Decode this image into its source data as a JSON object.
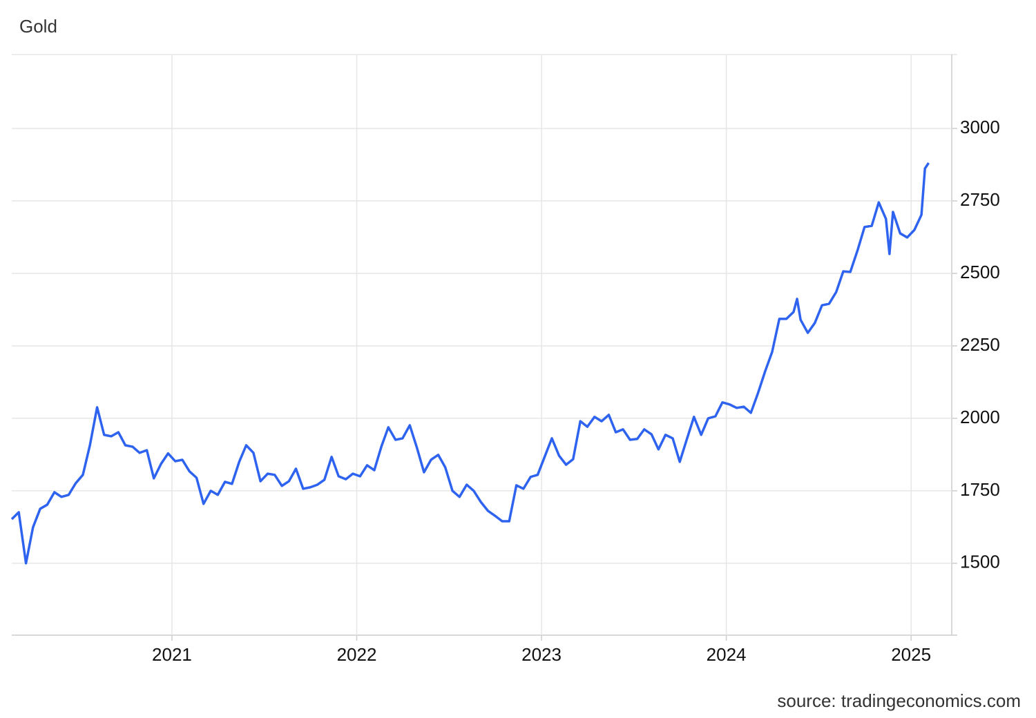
{
  "chart_data": {
    "type": "line",
    "title": "Gold",
    "source": "source: tradingeconomics.com",
    "color": "#2e63f0",
    "grid": true,
    "x": [
      2020.133,
      2020.171,
      2020.21,
      2020.248,
      2020.287,
      2020.325,
      2020.364,
      2020.402,
      2020.441,
      2020.479,
      2020.518,
      2020.556,
      2020.595,
      2020.633,
      2020.671,
      2020.71,
      2020.748,
      2020.787,
      2020.825,
      2020.864,
      2020.902,
      2020.941,
      2020.979,
      2021.018,
      2021.056,
      2021.095,
      2021.133,
      2021.171,
      2021.21,
      2021.248,
      2021.287,
      2021.325,
      2021.364,
      2021.402,
      2021.441,
      2021.479,
      2021.518,
      2021.556,
      2021.595,
      2021.633,
      2021.671,
      2021.71,
      2021.748,
      2021.787,
      2021.825,
      2021.864,
      2021.902,
      2021.941,
      2021.979,
      2022.018,
      2022.056,
      2022.095,
      2022.133,
      2022.171,
      2022.21,
      2022.248,
      2022.287,
      2022.325,
      2022.364,
      2022.402,
      2022.441,
      2022.479,
      2022.518,
      2022.556,
      2022.595,
      2022.633,
      2022.671,
      2022.71,
      2022.748,
      2022.787,
      2022.825,
      2022.864,
      2022.902,
      2022.941,
      2022.979,
      2023.018,
      2023.056,
      2023.095,
      2023.133,
      2023.171,
      2023.21,
      2023.248,
      2023.287,
      2023.325,
      2023.364,
      2023.402,
      2023.441,
      2023.479,
      2023.518,
      2023.556,
      2023.595,
      2023.633,
      2023.671,
      2023.71,
      2023.748,
      2023.787,
      2023.825,
      2023.864,
      2023.902,
      2023.941,
      2023.979,
      2024.018,
      2024.056,
      2024.095,
      2024.133,
      2024.171,
      2024.21,
      2024.248,
      2024.287,
      2024.325,
      2024.364,
      2024.383,
      2024.402,
      2024.441,
      2024.479,
      2024.518,
      2024.556,
      2024.595,
      2024.633,
      2024.671,
      2024.71,
      2024.748,
      2024.787,
      2024.825,
      2024.864,
      2024.883,
      2024.902,
      2024.941,
      2024.979,
      2025.018,
      2025.056,
      2025.075,
      2025.095
    ],
    "values": [
      1652,
      1676,
      1500,
      1624,
      1688,
      1702,
      1745,
      1729,
      1736,
      1776,
      1805,
      1907,
      2038,
      1943,
      1938,
      1952,
      1907,
      1902,
      1881,
      1890,
      1793,
      1843,
      1879,
      1852,
      1857,
      1817,
      1795,
      1705,
      1750,
      1736,
      1781,
      1774,
      1850,
      1907,
      1881,
      1783,
      1809,
      1805,
      1767,
      1783,
      1826,
      1757,
      1762,
      1771,
      1788,
      1867,
      1800,
      1790,
      1809,
      1800,
      1838,
      1821,
      1902,
      1969,
      1926,
      1931,
      1976,
      1900,
      1814,
      1857,
      1874,
      1831,
      1750,
      1729,
      1771,
      1750,
      1712,
      1681,
      1664,
      1645,
      1645,
      1769,
      1757,
      1798,
      1805,
      1869,
      1931,
      1871,
      1840,
      1859,
      1990,
      1971,
      2005,
      1990,
      2012,
      1952,
      1962,
      1926,
      1929,
      1962,
      1945,
      1893,
      1943,
      1931,
      1850,
      1929,
      2005,
      1943,
      2000,
      2007,
      2055,
      2048,
      2036,
      2040,
      2019,
      2086,
      2162,
      2229,
      2343,
      2343,
      2367,
      2412,
      2340,
      2295,
      2329,
      2390,
      2395,
      2436,
      2507,
      2505,
      2579,
      2660,
      2664,
      2745,
      2688,
      2567,
      2712,
      2638,
      2624,
      2650,
      2702,
      2862,
      2881
    ],
    "xlim": [
      2020.133,
      2025.22
    ],
    "xticks": [
      2021,
      2022,
      2023,
      2024,
      2025
    ],
    "ylim": [
      1252,
      3255
    ],
    "yticks": [
      1500,
      1750,
      2000,
      2250,
      2500,
      2750,
      3000
    ]
  }
}
